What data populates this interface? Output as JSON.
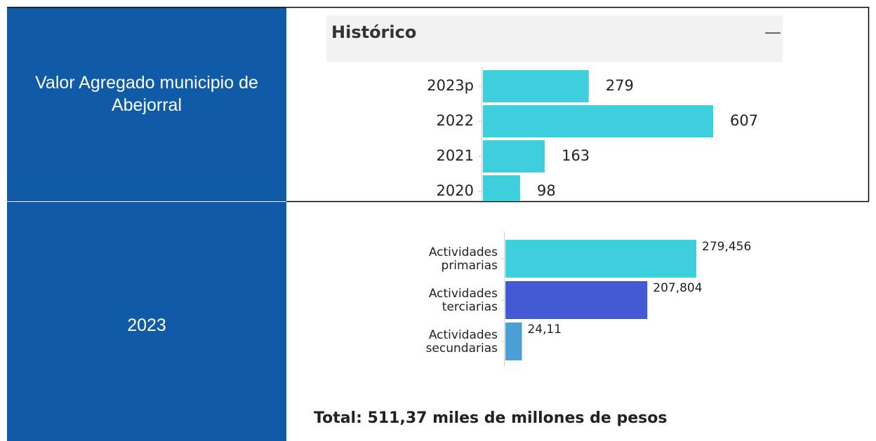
{
  "table": {
    "rows": [
      {
        "label": "Valor Agregado municipio de Abejorral"
      },
      {
        "label": "2023"
      }
    ]
  },
  "chart_data": [
    {
      "type": "bar",
      "orientation": "horizontal",
      "title": "Histórico",
      "collapse_icon": "—",
      "categories": [
        "2023p",
        "2022",
        "2021",
        "2020"
      ],
      "values": [
        279,
        607,
        163,
        98
      ],
      "color": "#3ecfdc"
    },
    {
      "type": "bar",
      "orientation": "horizontal",
      "categories": [
        [
          "Actividades",
          "primarias"
        ],
        [
          "Actividades",
          "terciarias"
        ],
        [
          "Actividades",
          "secundarias"
        ]
      ],
      "values": [
        279.456,
        207.804,
        24.11
      ],
      "value_labels": [
        "279,456",
        "207,804",
        "24,11"
      ],
      "colors": [
        "#3ecfdc",
        "#4459d4",
        "#4b9fd4"
      ],
      "annotation": "Total: 511,37 miles de millones de pesos"
    }
  ]
}
